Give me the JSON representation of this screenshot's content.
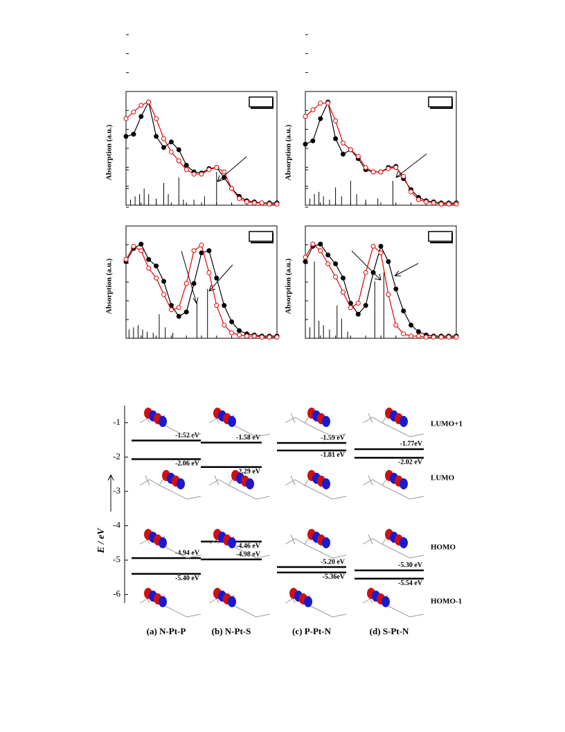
{
  "chart_data": [
    {
      "type": "line",
      "ylabel": "Absorption (a.u.)",
      "xlim": [
        0,
        100
      ],
      "ylim": [
        0,
        1
      ],
      "x": [
        0,
        5,
        10,
        15,
        20,
        25,
        30,
        35,
        40,
        45,
        50,
        55,
        60,
        65,
        70,
        75,
        80,
        85,
        90,
        95,
        100
      ],
      "series": [
        {
          "color": "#000000",
          "marker": "filled",
          "values": [
            0.62,
            0.64,
            0.8,
            0.93,
            0.62,
            0.52,
            0.57,
            0.5,
            0.36,
            0.3,
            0.29,
            0.33,
            0.34,
            0.25,
            0.15,
            0.08,
            0.04,
            0.03,
            0.02,
            0.02,
            0.02
          ]
        },
        {
          "color": "#e00000",
          "marker": "open",
          "values": [
            0.78,
            0.84,
            0.9,
            0.93,
            0.78,
            0.6,
            0.48,
            0.4,
            0.32,
            0.28,
            0.28,
            0.32,
            0.34,
            0.3,
            0.15,
            0.06,
            0.03,
            0.02,
            0.02,
            0.01,
            0.01
          ]
        }
      ],
      "sticks": {
        "x": [
          3,
          6,
          9,
          12,
          15,
          20,
          25,
          28,
          35,
          38,
          45,
          52,
          60
        ],
        "values": [
          0.05,
          0.08,
          0.1,
          0.15,
          0.1,
          0.06,
          0.2,
          0.1,
          0.25,
          0.05,
          0.05,
          0.08,
          0.3
        ]
      }
    },
    {
      "type": "line",
      "ylabel": "Absorption (a.u.)",
      "xlim": [
        0,
        100
      ],
      "ylim": [
        0,
        1
      ],
      "x": [
        0,
        5,
        10,
        15,
        20,
        25,
        30,
        35,
        40,
        45,
        50,
        55,
        60,
        65,
        70,
        75,
        80,
        85,
        90,
        95,
        100
      ],
      "series": [
        {
          "color": "#000000",
          "marker": "filled",
          "values": [
            0.55,
            0.58,
            0.78,
            0.93,
            0.6,
            0.46,
            0.5,
            0.42,
            0.32,
            0.3,
            0.3,
            0.34,
            0.35,
            0.24,
            0.14,
            0.07,
            0.04,
            0.03,
            0.02,
            0.02,
            0.02
          ]
        },
        {
          "color": "#e00000",
          "marker": "open",
          "values": [
            0.8,
            0.86,
            0.92,
            0.92,
            0.76,
            0.56,
            0.5,
            0.44,
            0.34,
            0.3,
            0.3,
            0.33,
            0.34,
            0.26,
            0.12,
            0.05,
            0.03,
            0.02,
            0.01,
            0.01,
            0.01
          ]
        }
      ],
      "sticks": {
        "x": [
          3,
          6,
          9,
          12,
          16,
          20,
          24,
          30,
          34,
          40,
          48,
          58
        ],
        "values": [
          0.06,
          0.1,
          0.12,
          0.08,
          0.05,
          0.16,
          0.08,
          0.22,
          0.1,
          0.05,
          0.06,
          0.22
        ]
      }
    },
    {
      "type": "line",
      "ylabel": "Absorption (a.u.)",
      "xlim": [
        0,
        100
      ],
      "ylim": [
        0,
        1
      ],
      "x": [
        0,
        5,
        10,
        15,
        20,
        25,
        30,
        35,
        40,
        45,
        50,
        55,
        60,
        65,
        70,
        75,
        80,
        85,
        90,
        95,
        100
      ],
      "series": [
        {
          "color": "#000000",
          "marker": "filled",
          "values": [
            0.7,
            0.82,
            0.86,
            0.72,
            0.66,
            0.52,
            0.3,
            0.2,
            0.24,
            0.5,
            0.78,
            0.8,
            0.55,
            0.3,
            0.15,
            0.07,
            0.04,
            0.03,
            0.02,
            0.02,
            0.02
          ]
        },
        {
          "color": "#e00000",
          "marker": "open",
          "values": [
            0.72,
            0.84,
            0.8,
            0.64,
            0.55,
            0.4,
            0.26,
            0.28,
            0.5,
            0.8,
            0.85,
            0.6,
            0.3,
            0.12,
            0.05,
            0.03,
            0.02,
            0.02,
            0.01,
            0.01,
            0.01
          ]
        }
      ],
      "sticks": {
        "x": [
          2,
          5,
          8,
          11,
          14,
          18,
          22,
          26,
          31,
          47,
          54
        ],
        "values": [
          0.08,
          0.1,
          0.12,
          0.08,
          0.06,
          0.05,
          0.22,
          0.1,
          0.05,
          0.32,
          0.45
        ]
      }
    },
    {
      "type": "line",
      "ylabel": "Absorption (a.u.)",
      "xlim": [
        0,
        100
      ],
      "ylim": [
        0,
        1
      ],
      "x": [
        0,
        5,
        10,
        15,
        20,
        25,
        30,
        35,
        40,
        45,
        50,
        55,
        60,
        65,
        70,
        75,
        80,
        85,
        90,
        95,
        100
      ],
      "series": [
        {
          "color": "#000000",
          "marker": "filled",
          "values": [
            0.7,
            0.84,
            0.86,
            0.76,
            0.68,
            0.55,
            0.32,
            0.22,
            0.3,
            0.6,
            0.84,
            0.7,
            0.45,
            0.25,
            0.12,
            0.06,
            0.03,
            0.02,
            0.02,
            0.02,
            0.02
          ]
        },
        {
          "color": "#e00000",
          "marker": "open",
          "values": [
            0.74,
            0.86,
            0.8,
            0.68,
            0.56,
            0.42,
            0.28,
            0.32,
            0.6,
            0.84,
            0.78,
            0.4,
            0.12,
            0.04,
            0.02,
            0.02,
            0.01,
            0.01,
            0.01,
            0.01,
            0.01
          ]
        }
      ],
      "sticks": {
        "x": [
          3,
          6,
          9,
          12,
          16,
          21,
          24,
          28,
          46,
          52
        ],
        "values": [
          0.1,
          0.7,
          0.16,
          0.12,
          0.08,
          0.3,
          0.18,
          0.06,
          0.52,
          0.6
        ]
      }
    },
    {
      "type": "energy-levels",
      "ylabel": "E / eV",
      "ylim": [
        -6.25,
        -0.5
      ],
      "yticks": [
        -1,
        -2,
        -3,
        -4,
        -5,
        -6
      ],
      "categories": [
        "LUMO+1",
        "LUMO",
        "HOMO",
        "HOMO-1"
      ],
      "series": [
        {
          "name": "(a) N-Pt-P",
          "values": [
            -1.52,
            -2.06,
            -4.94,
            -5.4
          ],
          "value_labels": [
            "-1.52 eV",
            "-2.06 eV",
            "-4.94 eV",
            "-5.40 eV"
          ]
        },
        {
          "name": "(b) N-Pt-S",
          "values": [
            -1.58,
            -2.29,
            -4.98,
            -4.46
          ],
          "value_labels": [
            "-1.58 eV",
            "-2.29 eV",
            "-4.98 eV",
            "-4.46 eV"
          ]
        },
        {
          "name": "(c) P-Pt-N",
          "values": [
            -1.59,
            -1.81,
            -5.2,
            -5.36
          ],
          "value_labels": [
            "-1.59 eV",
            "-1.81 eV",
            "-5.20 eV",
            "-5.36eV"
          ]
        },
        {
          "name": "(d) S-Pt-N",
          "values": [
            -1.77,
            -2.02,
            -5.3,
            -5.54
          ],
          "value_labels": [
            "-1.77eV",
            "-2.02 eV",
            "-5.30 eV",
            "-5.54 eV"
          ]
        }
      ]
    }
  ]
}
